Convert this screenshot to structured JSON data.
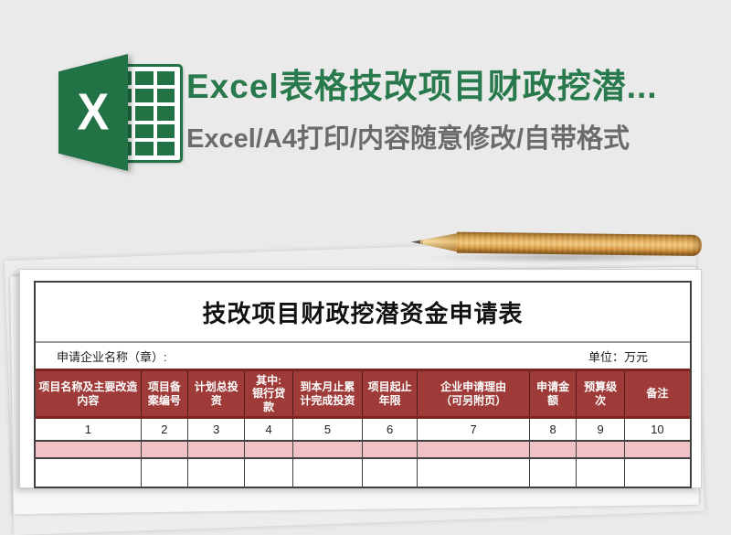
{
  "banner": {
    "logo_letter": "X",
    "title": "Excel表格技改项目财政挖潜...",
    "subtitle": "Excel/A4打印/内容随意修改/自带格式"
  },
  "colors": {
    "page_background": "#EAEAEA",
    "excel_green": "#217346",
    "banner_title_green": "#28794C",
    "banner_subtitle_gray": "#6B6B6B",
    "table_header_red": "#9E3B38",
    "table_header_border_red": "#7C2422",
    "pink_row": "#F0C2C5"
  },
  "form": {
    "title": "技改项目财政挖潜资金申请表",
    "company_label": "申请企业名称（章）:",
    "unit_label": "单位：万元",
    "columns": [
      {
        "label": "项目名称及主要改造\n内容",
        "num": "1"
      },
      {
        "label": "项目备\n案编号",
        "num": "2"
      },
      {
        "label": "计划总投\n资",
        "num": "3"
      },
      {
        "label": "其中:\n银行贷\n款",
        "num": "4"
      },
      {
        "label": "到本月止累\n计完成投资",
        "num": "5"
      },
      {
        "label": "项目起止\n年限",
        "num": "6"
      },
      {
        "label": "企业申请理由\n（可另附页）",
        "num": "7"
      },
      {
        "label": "申请金\n额",
        "num": "8"
      },
      {
        "label": "预算级\n次",
        "num": "9"
      },
      {
        "label": "备注",
        "num": "10"
      }
    ],
    "data_rows": [
      [
        "",
        "",
        "",
        "",
        "",
        "",
        "",
        "",
        "",
        ""
      ],
      [
        "",
        "",
        "",
        "",
        "",
        "",
        "",
        "",
        "",
        ""
      ]
    ]
  }
}
